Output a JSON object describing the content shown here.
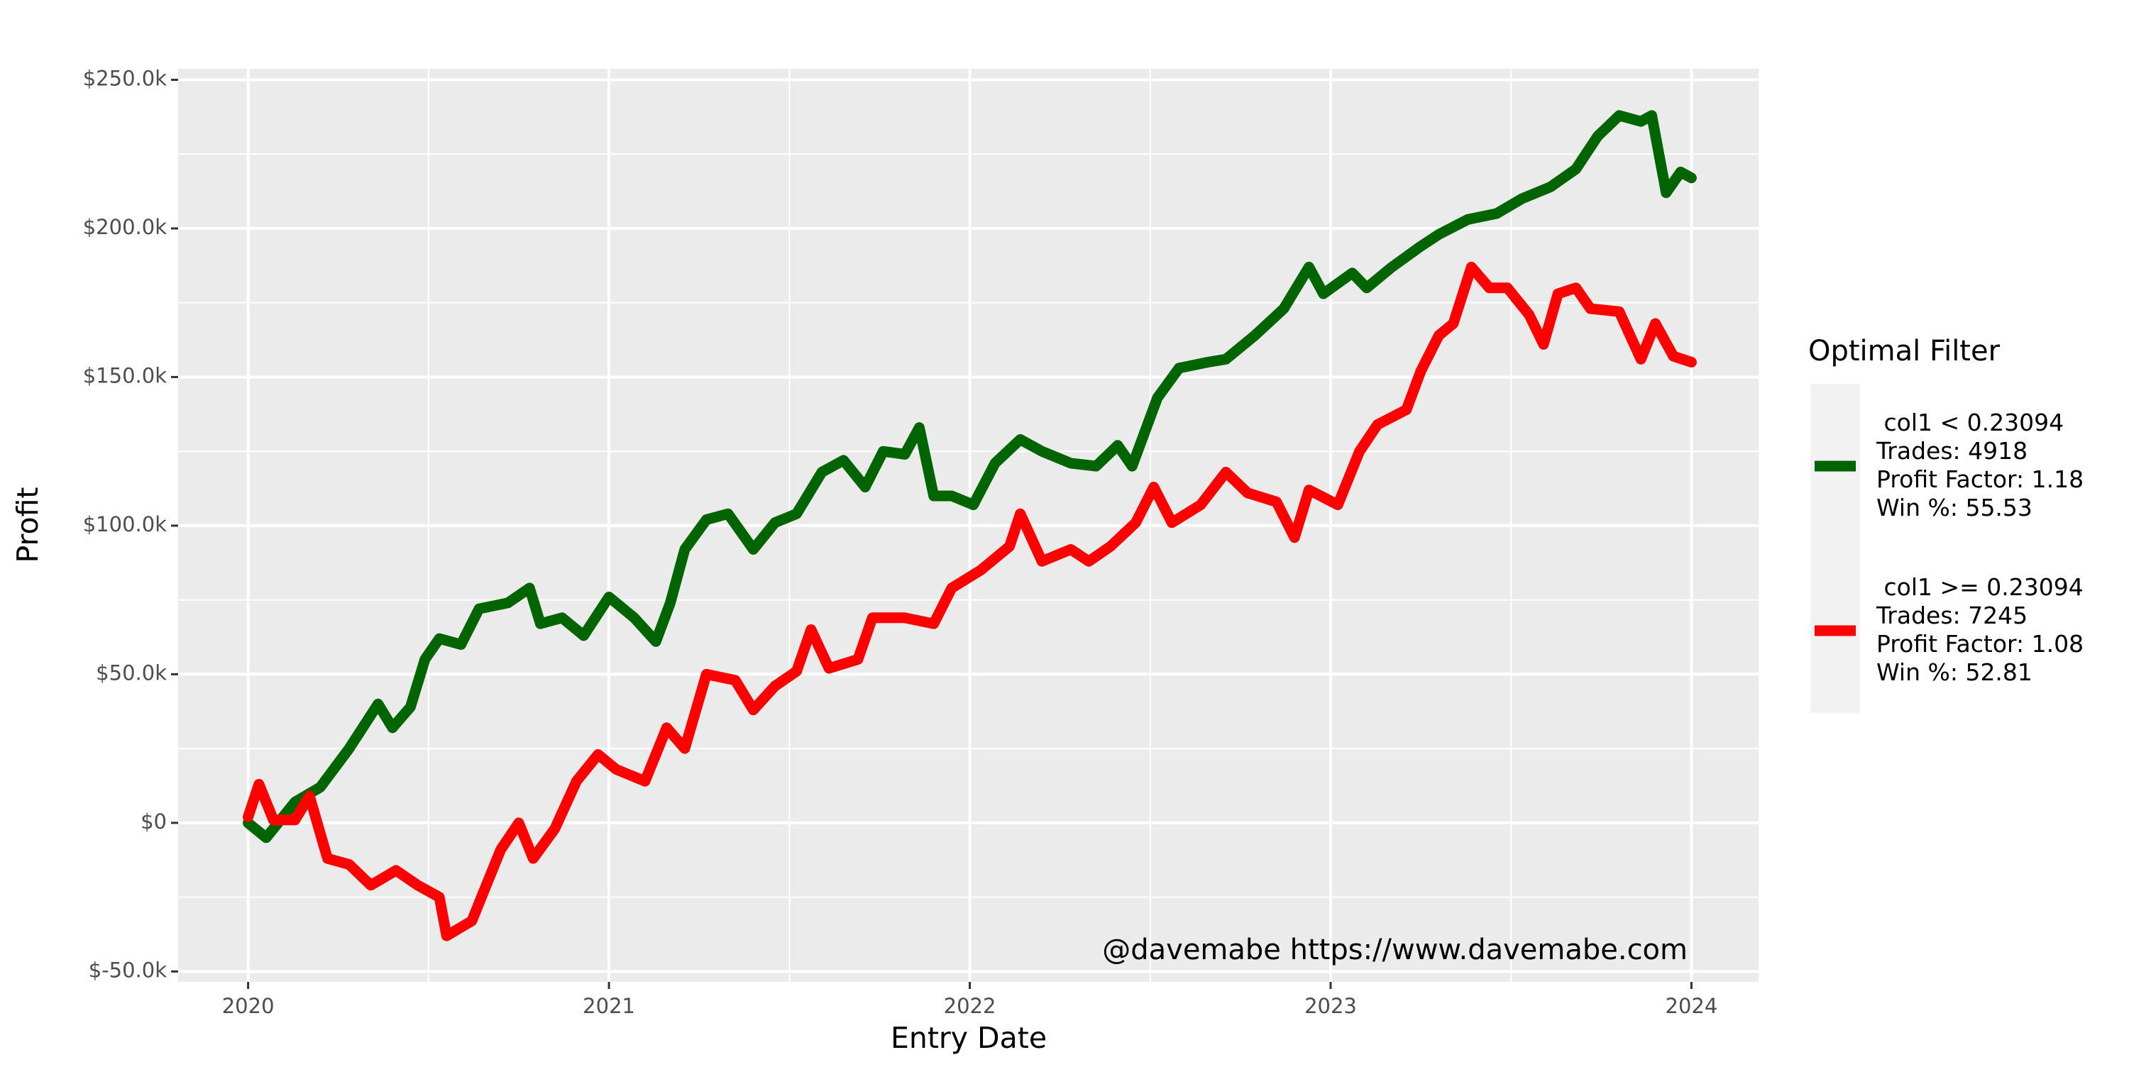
{
  "chart_data": {
    "type": "line",
    "x_label": "Entry Date",
    "y_label": "Profit",
    "annotation": "@davemabe https://www.davemabe.com",
    "legend_title": "Optimal Filter",
    "legend": "right",
    "grid": true,
    "minor_grid": true,
    "background": "#ebebeb",
    "xlim": [
      2019.806,
      2024.186
    ],
    "xticks": [
      2020,
      2021,
      2022,
      2023,
      2024
    ],
    "ylim": [
      -53500,
      253700
    ],
    "yticks": [
      {
        "value": -50000,
        "label": "$-50.0k"
      },
      {
        "value": 0,
        "label": "$0"
      },
      {
        "value": 50000,
        "label": "$50.0k"
      },
      {
        "value": 100000,
        "label": "$100.0k"
      },
      {
        "value": 150000,
        "label": "$150.0k"
      },
      {
        "value": 200000,
        "label": "$200.0k"
      },
      {
        "value": 250000,
        "label": "$250.0k"
      }
    ],
    "series": [
      {
        "name": " col1 < 0.23094\nTrades: 4918\nProfit Factor: 1.18\nWin %: 55.53",
        "color": "#006400",
        "x": [
          2020.0,
          2020.05,
          2020.13,
          2020.2,
          2020.28,
          2020.36,
          2020.4,
          2020.45,
          2020.49,
          2020.53,
          2020.59,
          2020.64,
          2020.72,
          2020.78,
          2020.81,
          2020.87,
          2020.93,
          2021.0,
          2021.07,
          2021.13,
          2021.17,
          2021.21,
          2021.27,
          2021.33,
          2021.4,
          2021.46,
          2021.52,
          2021.59,
          2021.65,
          2021.71,
          2021.76,
          2021.82,
          2021.86,
          2021.9,
          2021.95,
          2022.01,
          2022.07,
          2022.14,
          2022.2,
          2022.28,
          2022.35,
          2022.41,
          2022.45,
          2022.52,
          2022.58,
          2022.66,
          2022.71,
          2022.79,
          2022.87,
          2022.94,
          2022.98,
          2023.06,
          2023.1,
          2023.17,
          2023.25,
          2023.3,
          2023.38,
          2023.46,
          2023.53,
          2023.61,
          2023.68,
          2023.74,
          2023.8,
          2023.86,
          2023.89,
          2023.93,
          2023.97,
          2024.0
        ],
        "values": [
          0,
          -5000,
          7000,
          12000,
          25000,
          40000,
          32000,
          39000,
          55000,
          62000,
          60000,
          72000,
          74000,
          79000,
          67000,
          69000,
          63000,
          76000,
          69000,
          61000,
          74000,
          92000,
          102000,
          104000,
          92000,
          101000,
          104000,
          118000,
          122000,
          113000,
          125000,
          124000,
          133000,
          110000,
          110000,
          107000,
          121000,
          129000,
          125000,
          121000,
          120000,
          127000,
          120000,
          143000,
          153000,
          155000,
          156000,
          164000,
          173000,
          187000,
          178000,
          185000,
          180000,
          187000,
          194000,
          198000,
          203000,
          205000,
          210000,
          214000,
          220000,
          231000,
          238000,
          236000,
          238000,
          212000,
          219000,
          217000
        ]
      },
      {
        "name": " col1 >= 0.23094\nTrades: 7245\nProfit Factor: 1.08\nWin %: 52.81",
        "color": "#ff0000",
        "x": [
          2020.0,
          2020.03,
          2020.07,
          2020.13,
          2020.17,
          2020.22,
          2020.28,
          2020.34,
          2020.41,
          2020.47,
          2020.53,
          2020.55,
          2020.62,
          2020.66,
          2020.7,
          2020.75,
          2020.79,
          2020.85,
          2020.91,
          2020.97,
          2021.02,
          2021.1,
          2021.16,
          2021.21,
          2021.27,
          2021.35,
          2021.4,
          2021.46,
          2021.52,
          2021.56,
          2021.61,
          2021.69,
          2021.73,
          2021.82,
          2021.9,
          2021.95,
          2022.03,
          2022.11,
          2022.14,
          2022.2,
          2022.28,
          2022.33,
          2022.39,
          2022.46,
          2022.51,
          2022.56,
          2022.64,
          2022.71,
          2022.77,
          2022.85,
          2022.9,
          2022.94,
          2023.02,
          2023.08,
          2023.13,
          2023.21,
          2023.25,
          2023.3,
          2023.34,
          2023.39,
          2023.44,
          2023.49,
          2023.55,
          2023.59,
          2023.63,
          2023.68,
          2023.72,
          2023.8,
          2023.86,
          2023.9,
          2023.95,
          2024.0
        ],
        "values": [
          2000,
          13000,
          1000,
          1000,
          9000,
          -12000,
          -14000,
          -21000,
          -16000,
          -21000,
          -25000,
          -38000,
          -33000,
          -21000,
          -9000,
          0,
          -12000,
          -2000,
          14000,
          23000,
          18000,
          14000,
          32000,
          25000,
          50000,
          48000,
          38000,
          46000,
          51000,
          65000,
          52000,
          55000,
          69000,
          69000,
          67000,
          79000,
          85000,
          93000,
          104000,
          88000,
          92000,
          88000,
          93000,
          101000,
          113000,
          101000,
          107000,
          118000,
          111000,
          108000,
          96000,
          112000,
          107000,
          125000,
          134000,
          139000,
          152000,
          164000,
          168000,
          187000,
          180000,
          180000,
          171000,
          161000,
          178000,
          180000,
          173000,
          172000,
          156000,
          168000,
          157000,
          155000
        ]
      }
    ]
  }
}
